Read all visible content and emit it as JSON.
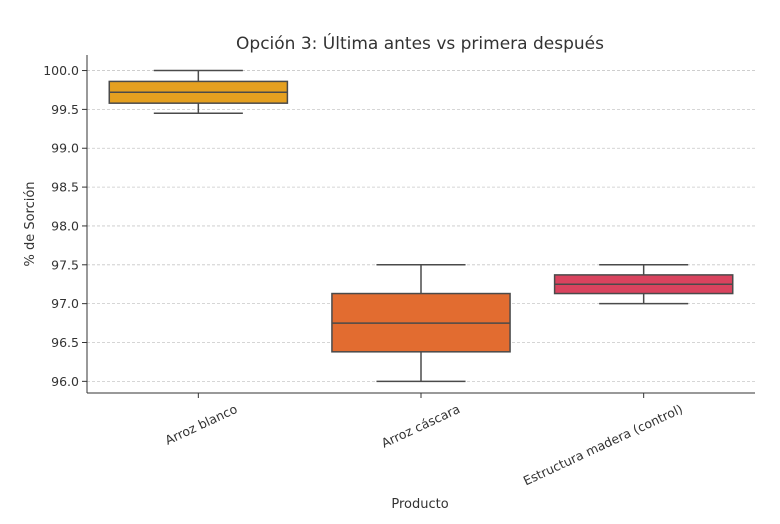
{
  "chart_data": {
    "type": "box",
    "title": "Opción 3: Última antes vs primera después",
    "xlabel": "Producto",
    "ylabel": "% de Sorción",
    "ylim": [
      95.85,
      100.2
    ],
    "yticks": [
      96.0,
      96.5,
      97.0,
      97.5,
      98.0,
      98.5,
      99.0,
      99.5,
      100.0
    ],
    "ytick_labels": [
      "96.0",
      "96.5",
      "97.0",
      "97.5",
      "98.0",
      "98.5",
      "99.0",
      "99.5",
      "100.0"
    ],
    "grid": "horizontal dashed",
    "categories": [
      "Arroz blanco",
      "Arroz cáscara",
      "Estructura madera (control)"
    ],
    "boxes": [
      {
        "category": "Arroz blanco",
        "whisker_low": 99.45,
        "q1": 99.58,
        "median": 99.72,
        "q3": 99.86,
        "whisker_high": 100.0,
        "color": "#E5A020"
      },
      {
        "category": "Arroz cáscara",
        "whisker_low": 96.0,
        "q1": 96.38,
        "median": 96.75,
        "q3": 97.13,
        "whisker_high": 97.5,
        "color": "#E26C30"
      },
      {
        "category": "Estructura madera (control)",
        "whisker_low": 97.0,
        "q1": 97.13,
        "median": 97.25,
        "q3": 97.37,
        "whisker_high": 97.5,
        "color": "#D9435E"
      }
    ]
  }
}
